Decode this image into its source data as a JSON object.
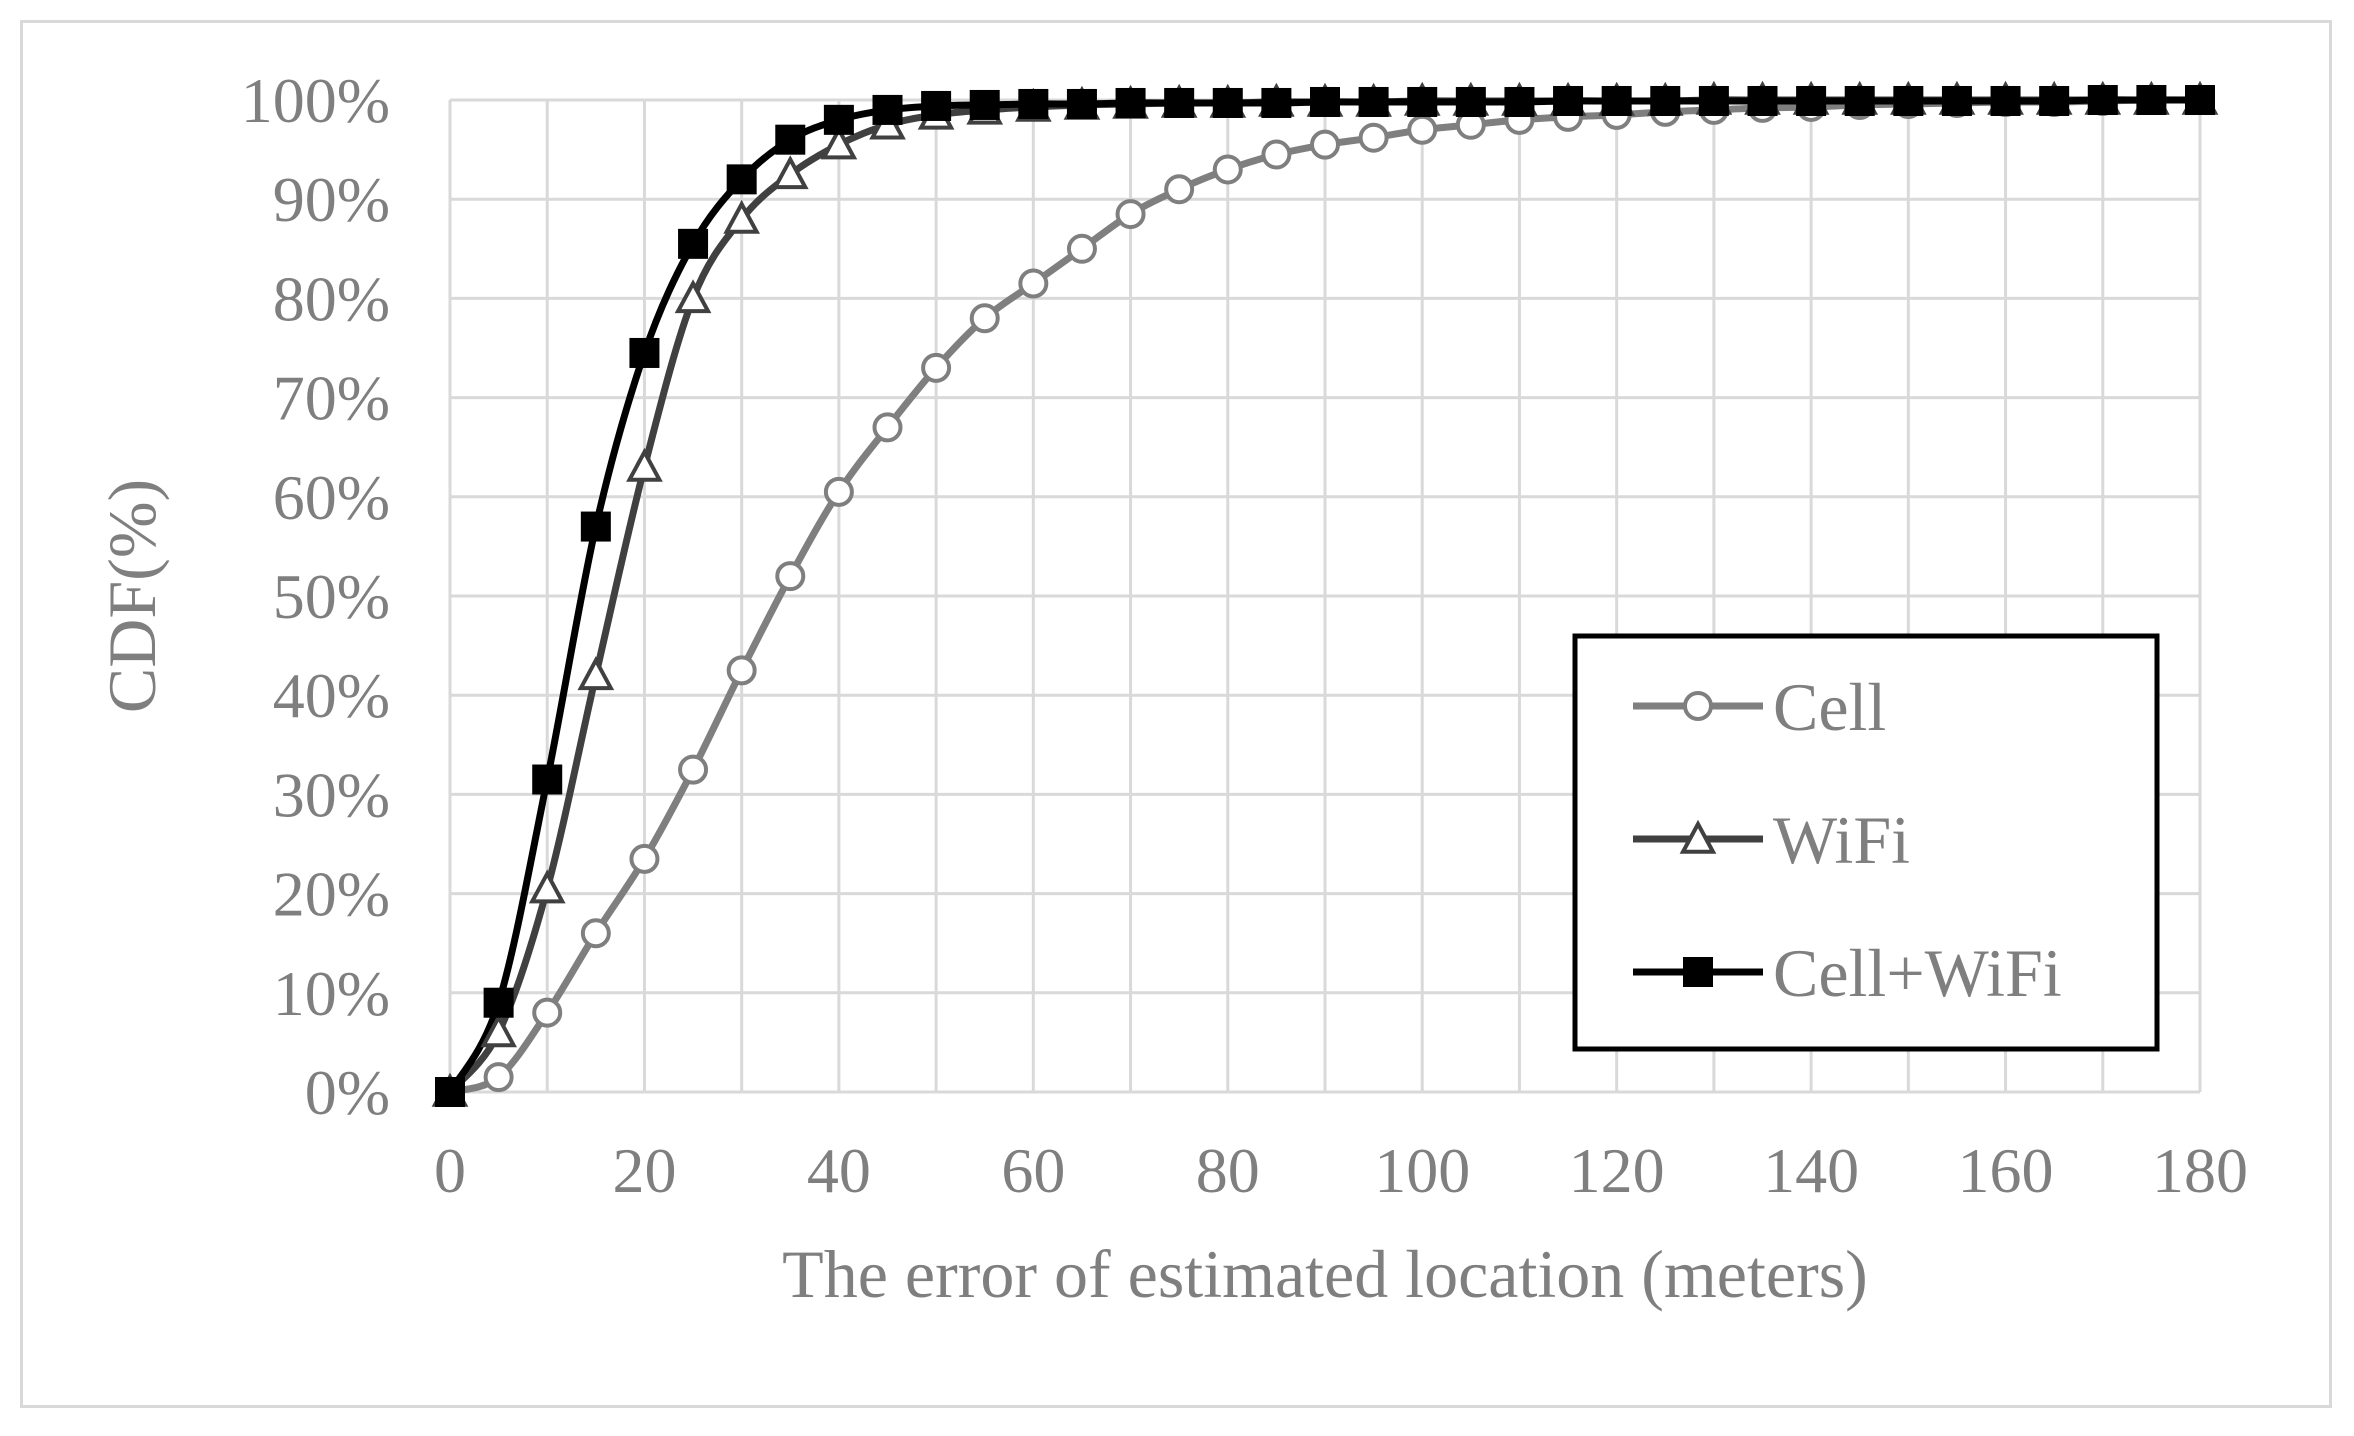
{
  "chart_data": {
    "type": "line",
    "title": "",
    "xlabel": "The error of estimated location (meters)",
    "ylabel": "CDF(%)",
    "xlim": [
      0,
      180
    ],
    "ylim": [
      0,
      100
    ],
    "x_ticks": [
      "0",
      "20",
      "40",
      "60",
      "80",
      "100",
      "120",
      "140",
      "160",
      "180"
    ],
    "y_ticks": [
      "0%",
      "10%",
      "20%",
      "30%",
      "40%",
      "50%",
      "60%",
      "70%",
      "80%",
      "90%",
      "100%"
    ],
    "grid": true,
    "legend_position": "bottom-right",
    "x": [
      0,
      5,
      10,
      15,
      20,
      25,
      30,
      35,
      40,
      45,
      50,
      55,
      60,
      65,
      70,
      75,
      80,
      85,
      90,
      95,
      100,
      105,
      110,
      115,
      120,
      125,
      130,
      135,
      140,
      145,
      150,
      155,
      160,
      165,
      170,
      175,
      180
    ],
    "series": [
      {
        "name": "Cell",
        "color": "#7f7f7f",
        "marker": "circle",
        "values": [
          0,
          1.5,
          8,
          16,
          23.5,
          32.5,
          42.5,
          52,
          60.5,
          67,
          73,
          78,
          81.5,
          85,
          88.5,
          91,
          93,
          94.5,
          95.5,
          96.2,
          97,
          97.5,
          98,
          98.3,
          98.5,
          98.8,
          99,
          99.2,
          99.3,
          99.5,
          99.6,
          99.7,
          99.8,
          99.8,
          99.9,
          100,
          100
        ]
      },
      {
        "name": "WiFi",
        "color": "#404040",
        "marker": "triangle",
        "values": [
          0,
          6,
          20.5,
          42,
          63,
          80,
          88,
          92.5,
          95.5,
          97.5,
          98.5,
          99,
          99.3,
          99.5,
          99.6,
          99.7,
          99.7,
          99.8,
          99.8,
          99.8,
          99.9,
          99.9,
          99.9,
          99.9,
          99.9,
          99.9,
          100,
          100,
          100,
          100,
          100,
          100,
          100,
          100,
          100,
          100,
          100
        ]
      },
      {
        "name": "Cell+WiFi",
        "color": "#000000",
        "marker": "square",
        "values": [
          0,
          9,
          31.5,
          57,
          74.5,
          85.5,
          92,
          96,
          98,
          99,
          99.4,
          99.5,
          99.6,
          99.6,
          99.7,
          99.7,
          99.7,
          99.7,
          99.8,
          99.8,
          99.8,
          99.8,
          99.8,
          99.9,
          99.9,
          99.9,
          99.9,
          99.9,
          99.9,
          99.9,
          99.9,
          99.9,
          99.9,
          99.9,
          100,
          100,
          100
        ]
      }
    ]
  }
}
